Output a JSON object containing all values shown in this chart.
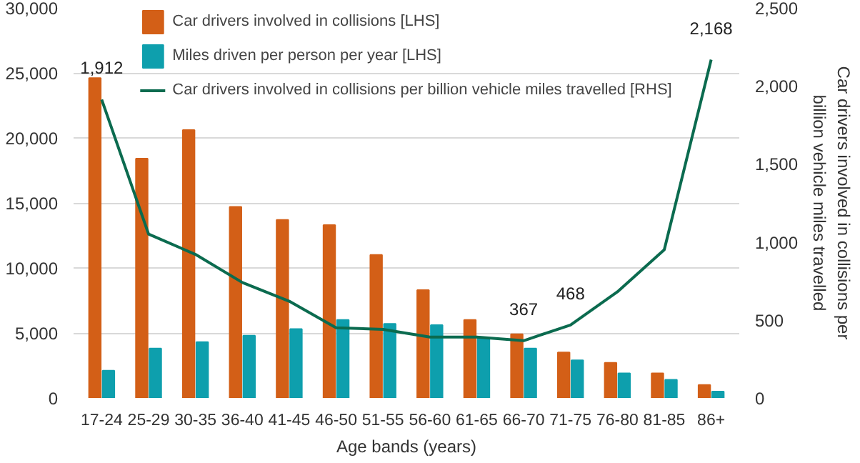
{
  "chart_data": {
    "type": "bar",
    "xlabel": "Age bands (years)",
    "y2label": "Car drivers involved in collisions per billion vehicle miles travelled",
    "categories": [
      "17-24",
      "25-29",
      "30-35",
      "36-40",
      "41-45",
      "46-50",
      "51-55",
      "56-60",
      "61-65",
      "66-70",
      "71-75",
      "76-80",
      "81-85",
      "86+"
    ],
    "series": [
      {
        "name": "Car drivers involved in collisions [LHS]",
        "color": "#d35f17",
        "values": [
          24600,
          18400,
          20600,
          14700,
          13700,
          13300,
          11000,
          8300,
          6000,
          4900,
          3500,
          2700,
          1900,
          1000
        ]
      },
      {
        "name": "Miles driven per person per year [LHS]",
        "color": "#0e9fad",
        "values": [
          2100,
          3800,
          4300,
          4800,
          5300,
          6000,
          5700,
          5600,
          4600,
          3800,
          2900,
          1900,
          1400,
          500
        ]
      },
      {
        "name": "Car drivers involved in collisions per billion vehicle miles travelled [RHS]",
        "type": "line",
        "axis": "y2",
        "color": "#0b6b4f",
        "values": [
          1912,
          1050,
          920,
          740,
          620,
          450,
          440,
          390,
          390,
          367,
          468,
          680,
          950,
          2168
        ],
        "value_labels": [
          "1,912",
          null,
          null,
          null,
          null,
          null,
          null,
          null,
          null,
          "367",
          "468",
          null,
          null,
          "2,168"
        ]
      }
    ],
    "ylim": [
      0,
      30000
    ],
    "yticks": [
      0,
      {
        "value": 5000,
        "label": "5,000"
      },
      {
        "value": 10000,
        "label": "10,000"
      },
      {
        "value": 15000,
        "label": "15,000"
      },
      {
        "value": 20000,
        "label": "20,000"
      },
      {
        "value": 25000,
        "label": "25,000"
      },
      {
        "value": 30000,
        "label": "30,000"
      }
    ],
    "y2lim": [
      0,
      2500
    ],
    "y2ticks": [
      0,
      500,
      {
        "value": 1000,
        "label": "1,000"
      },
      {
        "value": 1500,
        "label": "1,500"
      },
      {
        "value": 2000,
        "label": "2,000"
      },
      {
        "value": 2500,
        "label": "2,500"
      }
    ],
    "grid": "y",
    "legend": "top",
    "marker": "none",
    "line_style": "solid"
  }
}
